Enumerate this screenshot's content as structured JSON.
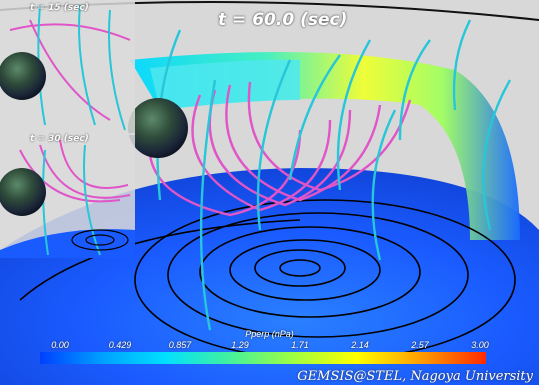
{
  "labels": {
    "main_time": "t = 60.0 (sec)",
    "inset_top_time": "t = 15 (sec)",
    "inset_mid_time": "t = 30 (sec)"
  },
  "colorbar": {
    "title": "Pperp (nPa)",
    "ticks": [
      "0.00",
      "0.429",
      "0.857",
      "1.29",
      "1.71",
      "2.14",
      "2.57",
      "3.00"
    ]
  },
  "credit": "GEMSIS@STEL, Nagoya University",
  "colors": {
    "background": "#dadada",
    "plasma_low": "#1a5bff",
    "plasma_mid": "#00e0ff",
    "plasma_high": "#ffff00",
    "field_line_cyan": "#27c6d8",
    "field_line_magenta": "#e055c8",
    "trajectory": "#000000"
  }
}
